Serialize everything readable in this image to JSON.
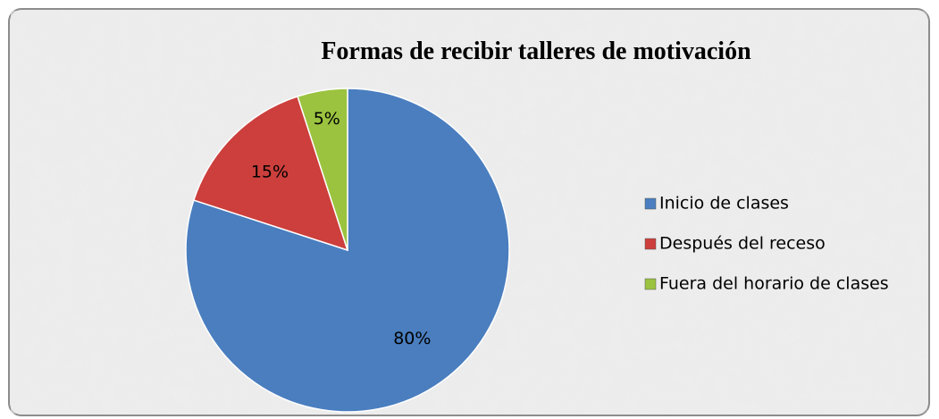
{
  "chart_data": {
    "type": "pie",
    "title": "Formas de recibir talleres de motivación",
    "categories": [
      "Inicio de clases",
      "Después del receso",
      "Fuera del horario de clases"
    ],
    "values": [
      80,
      15,
      5
    ],
    "value_labels": [
      "80%",
      "15%",
      "5%"
    ],
    "colors": [
      "#4a7ebf",
      "#cc3f3c",
      "#9bc33f"
    ],
    "legend": "right"
  }
}
